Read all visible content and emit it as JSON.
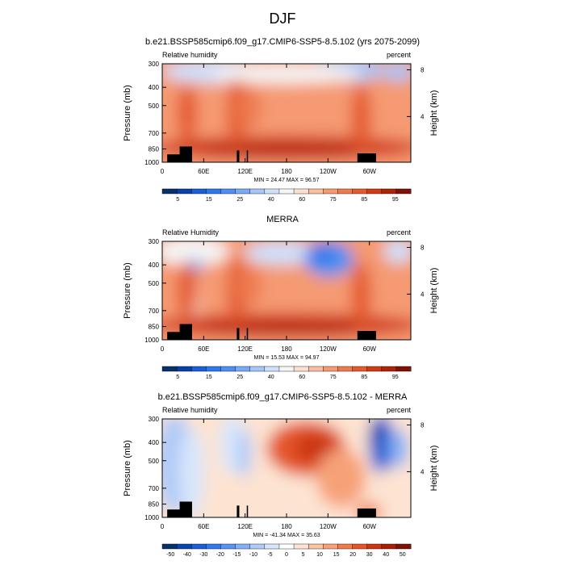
{
  "figure": {
    "title": "DJF"
  },
  "chart_data": [
    {
      "type": "heatmap",
      "id": "model",
      "title": "b.e21.BSSP585cmip6.f09_g17.CMIP6-SSP5-8.5.102 (yrs 2075-2099)",
      "left_label": "Relative humidity",
      "right_label": "percent",
      "ylabel": "Pressure (mb)",
      "ylabel_right": "Height (km)",
      "x_ticks": [
        "0",
        "60E",
        "120E",
        "180",
        "120W",
        "60W"
      ],
      "x_range_deg": [
        0,
        360
      ],
      "y_ticks": [
        "300",
        "400",
        "500",
        "700",
        "850",
        "1000"
      ],
      "y_tick_values_mb": [
        300,
        400,
        500,
        700,
        850,
        1000
      ],
      "y_range_mb": [
        1000,
        300
      ],
      "height_ticks": [
        "8",
        "4"
      ],
      "height_tick_values_km": [
        8,
        4
      ],
      "stats": "MIN = 24.47  MAX = 96.57",
      "colorbar": {
        "labels": [
          "5",
          "15",
          "25",
          "40",
          "60",
          "75",
          "85",
          "95"
        ],
        "colors": [
          "#08306b",
          "#0a3fa8",
          "#1a5fd6",
          "#2f78ec",
          "#4f8ff2",
          "#7aaaf4",
          "#a6c6f7",
          "#cfe0fb",
          "#f5f5f5",
          "#fbe0cf",
          "#f9bf9f",
          "#f59a72",
          "#ee7a4f",
          "#e45a2f",
          "#d13b12",
          "#ad2408",
          "#7e1206"
        ]
      }
    },
    {
      "type": "heatmap",
      "id": "obs",
      "title": "MERRA",
      "left_label": "Relative Humidity",
      "right_label": "percent",
      "ylabel": "Pressure (mb)",
      "ylabel_right": "Height (km)",
      "x_ticks": [
        "0",
        "60E",
        "120E",
        "180",
        "120W",
        "60W"
      ],
      "x_range_deg": [
        0,
        360
      ],
      "y_ticks": [
        "300",
        "400",
        "500",
        "700",
        "850",
        "1000"
      ],
      "y_tick_values_mb": [
        300,
        400,
        500,
        700,
        850,
        1000
      ],
      "y_range_mb": [
        1000,
        300
      ],
      "height_ticks": [
        "8",
        "4"
      ],
      "height_tick_values_km": [
        8,
        4
      ],
      "stats": "MIN = 15.53  MAX = 94.97",
      "colorbar": {
        "labels": [
          "5",
          "15",
          "25",
          "40",
          "60",
          "75",
          "85",
          "95"
        ],
        "colors": [
          "#08306b",
          "#0a3fa8",
          "#1a5fd6",
          "#2f78ec",
          "#4f8ff2",
          "#7aaaf4",
          "#a6c6f7",
          "#cfe0fb",
          "#f5f5f5",
          "#fbe0cf",
          "#f9bf9f",
          "#f59a72",
          "#ee7a4f",
          "#e45a2f",
          "#d13b12",
          "#ad2408",
          "#7e1206"
        ]
      }
    },
    {
      "type": "heatmap",
      "id": "diff",
      "title": "b.e21.BSSP585cmip6.f09_g17.CMIP6-SSP5-8.5.102 - MERRA",
      "left_label": "Relative humidity",
      "right_label": "percent",
      "ylabel": "Pressure (mb)",
      "ylabel_right": "Height (km)",
      "x_ticks": [
        "0",
        "60E",
        "120E",
        "180",
        "120W",
        "60W"
      ],
      "x_range_deg": [
        0,
        360
      ],
      "y_ticks": [
        "300",
        "400",
        "500",
        "700",
        "850",
        "1000"
      ],
      "y_tick_values_mb": [
        300,
        400,
        500,
        700,
        850,
        1000
      ],
      "y_range_mb": [
        1000,
        300
      ],
      "height_ticks": [
        "8",
        "4"
      ],
      "height_tick_values_km": [
        8,
        4
      ],
      "stats": "MIN = -41.34  MAX = 35.63",
      "colorbar": {
        "labels": [
          "-50",
          "-40",
          "-30",
          "-20",
          "-15",
          "-10",
          "-5",
          "0",
          "5",
          "10",
          "15",
          "20",
          "30",
          "40",
          "50"
        ],
        "colors": [
          "#08306b",
          "#0b45b0",
          "#1a5fd6",
          "#3377ec",
          "#5a93f2",
          "#86b0f5",
          "#b0cbf8",
          "#d8e6fb",
          "#ffffff",
          "#fde3d2",
          "#fbc4a3",
          "#f7a178",
          "#f07b4c",
          "#e4562a",
          "#cc3510",
          "#a81f06",
          "#7e1206"
        ]
      }
    }
  ]
}
